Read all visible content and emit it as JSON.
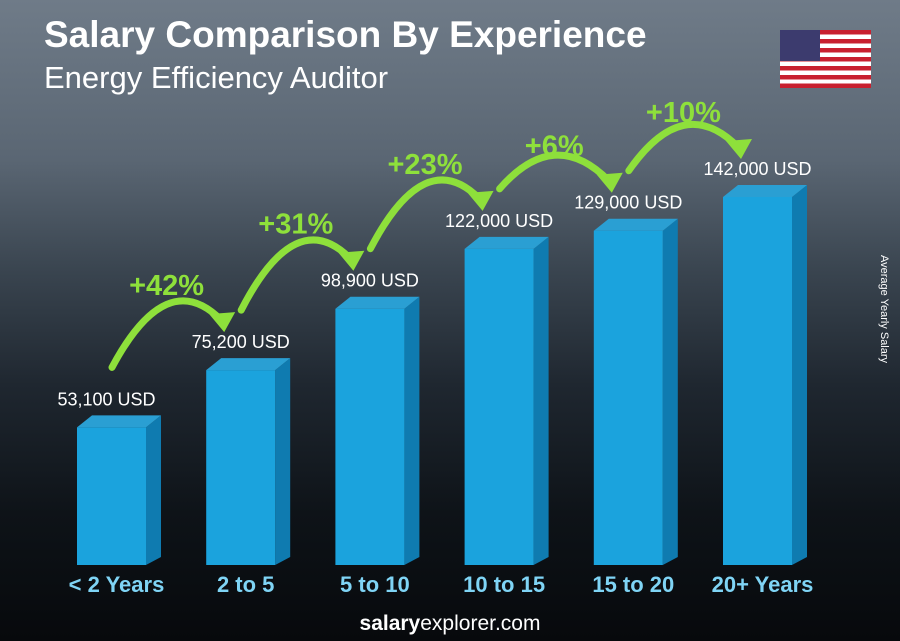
{
  "header": {
    "title": "Salary Comparison By Experience",
    "subtitle": "Energy Efficiency Auditor"
  },
  "footer": {
    "brand_bold": "salary",
    "brand_rest": "explorer",
    "brand_tld": ".com"
  },
  "flag": "us-flag",
  "chart_data": {
    "type": "bar",
    "title": "Salary Comparison By Experience",
    "subtitle": "Energy Efficiency Auditor",
    "ylabel": "Average Yearly Salary",
    "categories": [
      "< 2 Years",
      "2 to 5",
      "5 to 10",
      "10 to 15",
      "15 to 20",
      "20+ Years"
    ],
    "values": [
      53100,
      75200,
      98900,
      122000,
      129000,
      142000
    ],
    "value_labels": [
      "53,100 USD",
      "75,200 USD",
      "98,900 USD",
      "122,000 USD",
      "129,000 USD",
      "142,000 USD"
    ],
    "increases": [
      "+42%",
      "+31%",
      "+23%",
      "+6%",
      "+10%"
    ],
    "ylim": [
      0,
      142000
    ],
    "colors": {
      "bar": "#1ba3dd",
      "bar_side": "#0f7bb0",
      "bar_top": "#2a9fd3",
      "increase": "#8ee03b",
      "category": "#7fd4f5"
    }
  }
}
